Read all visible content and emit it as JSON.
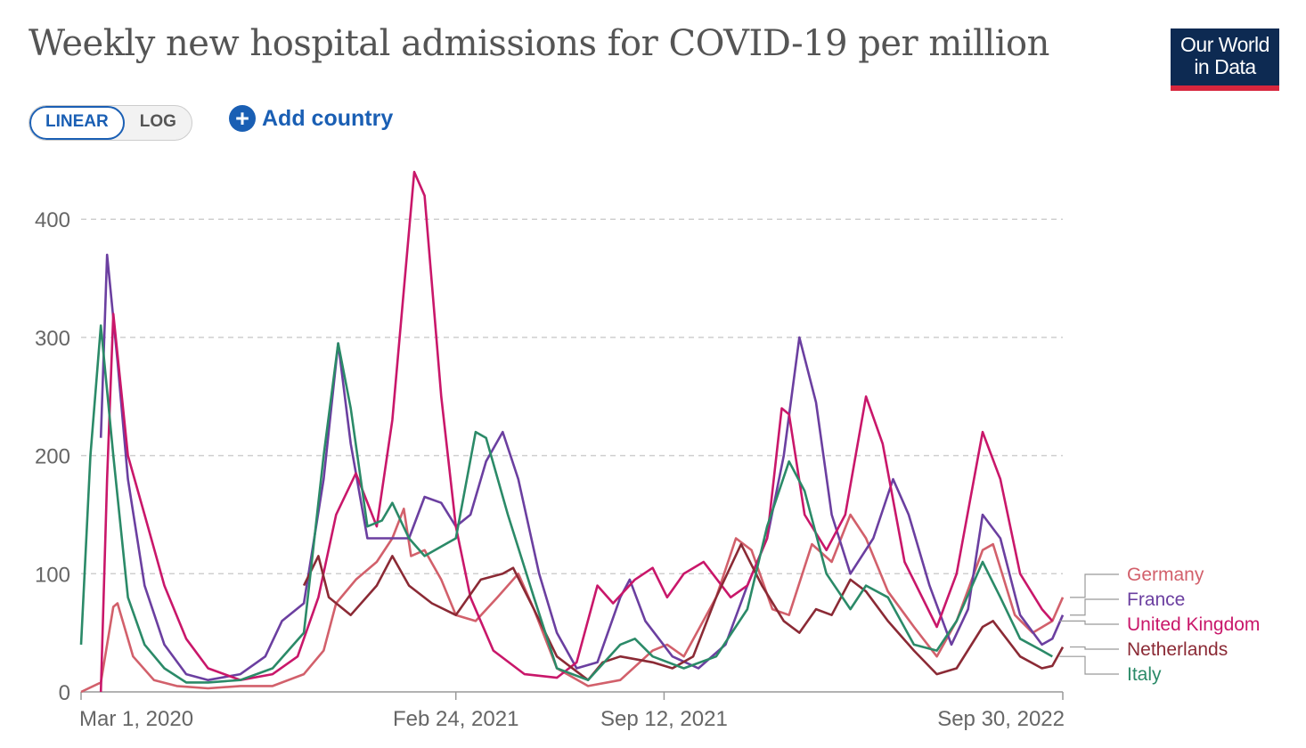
{
  "title": "Weekly new hospital admissions for COVID-19 per million",
  "logo": {
    "line1": "Our World",
    "line2": "in Data"
  },
  "scale_toggle": {
    "linear_label": "LINEAR",
    "log_label": "LOG",
    "selected": "LINEAR"
  },
  "add_country": {
    "label": "Add country",
    "icon": "plus-circle-icon"
  },
  "colors": {
    "Germany": "#d2606b",
    "France": "#6b3fa0",
    "United Kingdom": "#c9176a",
    "Netherlands": "#8b2a35",
    "Italy": "#2b8a68",
    "accent": "#1a5fb4"
  },
  "chart_data": {
    "type": "line",
    "title": "Weekly new hospital admissions for COVID-19 per million",
    "xlabel": "",
    "ylabel": "",
    "ylim": [
      0,
      440
    ],
    "yticks": [
      0,
      100,
      200,
      300,
      400
    ],
    "xticks": [
      "Mar 1, 2020",
      "Feb 24, 2021",
      "Sep 12, 2021",
      "Sep 30, 2022"
    ],
    "xlim": [
      "2020-03-01",
      "2022-09-30"
    ],
    "grid": "horizontal dashed",
    "legend": "right, line-end labels",
    "series": [
      {
        "name": "Germany",
        "points": [
          [
            "2020-03-01",
            0
          ],
          [
            "2020-03-20",
            8
          ],
          [
            "2020-04-01",
            72
          ],
          [
            "2020-04-05",
            75
          ],
          [
            "2020-04-20",
            30
          ],
          [
            "2020-05-10",
            10
          ],
          [
            "2020-06-01",
            5
          ],
          [
            "2020-07-01",
            3
          ],
          [
            "2020-08-01",
            5
          ],
          [
            "2020-09-01",
            5
          ],
          [
            "2020-10-01",
            15
          ],
          [
            "2020-10-20",
            35
          ],
          [
            "2020-11-01",
            75
          ],
          [
            "2020-11-20",
            95
          ],
          [
            "2020-12-10",
            110
          ],
          [
            "2020-12-25",
            130
          ],
          [
            "2021-01-05",
            155
          ],
          [
            "2021-01-12",
            115
          ],
          [
            "2021-01-25",
            120
          ],
          [
            "2021-02-10",
            95
          ],
          [
            "2021-02-24",
            65
          ],
          [
            "2021-03-15",
            60
          ],
          [
            "2021-04-05",
            80
          ],
          [
            "2021-04-25",
            100
          ],
          [
            "2021-05-10",
            70
          ],
          [
            "2021-06-01",
            20
          ],
          [
            "2021-07-01",
            5
          ],
          [
            "2021-08-01",
            10
          ],
          [
            "2021-09-01",
            35
          ],
          [
            "2021-09-15",
            40
          ],
          [
            "2021-10-01",
            30
          ],
          [
            "2021-11-01",
            80
          ],
          [
            "2021-11-20",
            130
          ],
          [
            "2021-12-05",
            120
          ],
          [
            "2021-12-25",
            70
          ],
          [
            "2022-01-10",
            65
          ],
          [
            "2022-02-01",
            125
          ],
          [
            "2022-02-20",
            110
          ],
          [
            "2022-03-10",
            150
          ],
          [
            "2022-03-25",
            130
          ],
          [
            "2022-04-15",
            85
          ],
          [
            "2022-05-10",
            55
          ],
          [
            "2022-06-01",
            30
          ],
          [
            "2022-06-20",
            60
          ],
          [
            "2022-07-15",
            120
          ],
          [
            "2022-07-25",
            125
          ],
          [
            "2022-08-15",
            65
          ],
          [
            "2022-09-01",
            50
          ],
          [
            "2022-09-20",
            60
          ],
          [
            "2022-09-30",
            80
          ]
        ]
      },
      {
        "name": "France",
        "points": [
          [
            "2020-03-20",
            215
          ],
          [
            "2020-03-26",
            370
          ],
          [
            "2020-04-05",
            280
          ],
          [
            "2020-04-15",
            180
          ],
          [
            "2020-05-01",
            90
          ],
          [
            "2020-05-20",
            40
          ],
          [
            "2020-06-10",
            15
          ],
          [
            "2020-07-01",
            10
          ],
          [
            "2020-08-01",
            15
          ],
          [
            "2020-08-25",
            30
          ],
          [
            "2020-09-10",
            60
          ],
          [
            "2020-10-01",
            75
          ],
          [
            "2020-10-20",
            180
          ],
          [
            "2020-11-03",
            295
          ],
          [
            "2020-11-15",
            210
          ],
          [
            "2020-12-01",
            130
          ],
          [
            "2020-12-20",
            130
          ],
          [
            "2021-01-10",
            130
          ],
          [
            "2021-01-25",
            165
          ],
          [
            "2021-02-10",
            160
          ],
          [
            "2021-02-24",
            140
          ],
          [
            "2021-03-10",
            150
          ],
          [
            "2021-03-25",
            195
          ],
          [
            "2021-04-10",
            220
          ],
          [
            "2021-04-25",
            180
          ],
          [
            "2021-05-15",
            100
          ],
          [
            "2021-06-01",
            50
          ],
          [
            "2021-06-20",
            20
          ],
          [
            "2021-07-10",
            25
          ],
          [
            "2021-08-01",
            80
          ],
          [
            "2021-08-10",
            95
          ],
          [
            "2021-08-25",
            60
          ],
          [
            "2021-09-20",
            30
          ],
          [
            "2021-10-15",
            20
          ],
          [
            "2021-11-10",
            40
          ],
          [
            "2021-12-01",
            90
          ],
          [
            "2021-12-20",
            130
          ],
          [
            "2022-01-05",
            200
          ],
          [
            "2022-01-20",
            300
          ],
          [
            "2022-02-05",
            245
          ],
          [
            "2022-02-20",
            150
          ],
          [
            "2022-03-10",
            100
          ],
          [
            "2022-04-01",
            130
          ],
          [
            "2022-04-20",
            180
          ],
          [
            "2022-05-05",
            150
          ],
          [
            "2022-05-25",
            90
          ],
          [
            "2022-06-15",
            40
          ],
          [
            "2022-07-01",
            70
          ],
          [
            "2022-07-15",
            150
          ],
          [
            "2022-08-01",
            130
          ],
          [
            "2022-08-20",
            65
          ],
          [
            "2022-09-10",
            40
          ],
          [
            "2022-09-20",
            45
          ],
          [
            "2022-09-30",
            65
          ]
        ]
      },
      {
        "name": "United Kingdom",
        "points": [
          [
            "2020-03-20",
            0
          ],
          [
            "2020-03-26",
            180
          ],
          [
            "2020-04-01",
            320
          ],
          [
            "2020-04-15",
            200
          ],
          [
            "2020-05-01",
            150
          ],
          [
            "2020-05-20",
            90
          ],
          [
            "2020-06-10",
            45
          ],
          [
            "2020-07-01",
            20
          ],
          [
            "2020-08-01",
            10
          ],
          [
            "2020-09-01",
            15
          ],
          [
            "2020-09-25",
            30
          ],
          [
            "2020-10-15",
            80
          ],
          [
            "2020-11-01",
            150
          ],
          [
            "2020-11-20",
            185
          ],
          [
            "2020-12-10",
            140
          ],
          [
            "2020-12-25",
            230
          ],
          [
            "2021-01-05",
            340
          ],
          [
            "2021-01-15",
            440
          ],
          [
            "2021-01-25",
            420
          ],
          [
            "2021-02-10",
            250
          ],
          [
            "2021-02-24",
            140
          ],
          [
            "2021-03-10",
            80
          ],
          [
            "2021-04-01",
            35
          ],
          [
            "2021-05-01",
            15
          ],
          [
            "2021-06-01",
            12
          ],
          [
            "2021-06-20",
            25
          ],
          [
            "2021-07-10",
            90
          ],
          [
            "2021-07-25",
            75
          ],
          [
            "2021-08-15",
            95
          ],
          [
            "2021-09-01",
            105
          ],
          [
            "2021-09-15",
            80
          ],
          [
            "2021-10-01",
            100
          ],
          [
            "2021-10-20",
            110
          ],
          [
            "2021-11-15",
            80
          ],
          [
            "2021-12-01",
            90
          ],
          [
            "2021-12-20",
            130
          ],
          [
            "2022-01-03",
            240
          ],
          [
            "2022-01-10",
            235
          ],
          [
            "2022-01-25",
            150
          ],
          [
            "2022-02-15",
            120
          ],
          [
            "2022-03-05",
            150
          ],
          [
            "2022-03-25",
            250
          ],
          [
            "2022-04-10",
            210
          ],
          [
            "2022-05-01",
            110
          ],
          [
            "2022-06-01",
            55
          ],
          [
            "2022-06-20",
            100
          ],
          [
            "2022-07-15",
            220
          ],
          [
            "2022-08-01",
            180
          ],
          [
            "2022-08-20",
            100
          ],
          [
            "2022-09-10",
            70
          ],
          [
            "2022-09-20",
            60
          ]
        ]
      },
      {
        "name": "Netherlands",
        "points": [
          [
            "2020-10-01",
            90
          ],
          [
            "2020-10-15",
            115
          ],
          [
            "2020-10-25",
            80
          ],
          [
            "2020-11-15",
            65
          ],
          [
            "2020-12-10",
            90
          ],
          [
            "2020-12-25",
            115
          ],
          [
            "2021-01-10",
            90
          ],
          [
            "2021-02-01",
            75
          ],
          [
            "2021-02-24",
            65
          ],
          [
            "2021-03-20",
            95
          ],
          [
            "2021-04-10",
            100
          ],
          [
            "2021-04-20",
            105
          ],
          [
            "2021-05-10",
            70
          ],
          [
            "2021-06-01",
            30
          ],
          [
            "2021-07-01",
            10
          ],
          [
            "2021-07-15",
            25
          ],
          [
            "2021-08-01",
            30
          ],
          [
            "2021-09-01",
            25
          ],
          [
            "2021-09-20",
            20
          ],
          [
            "2021-10-10",
            30
          ],
          [
            "2021-11-01",
            80
          ],
          [
            "2021-11-25",
            125
          ],
          [
            "2021-12-15",
            90
          ],
          [
            "2022-01-05",
            60
          ],
          [
            "2022-01-20",
            50
          ],
          [
            "2022-02-05",
            70
          ],
          [
            "2022-02-20",
            65
          ],
          [
            "2022-03-10",
            95
          ],
          [
            "2022-03-25",
            85
          ],
          [
            "2022-04-15",
            60
          ],
          [
            "2022-05-10",
            35
          ],
          [
            "2022-06-01",
            15
          ],
          [
            "2022-06-20",
            20
          ],
          [
            "2022-07-15",
            55
          ],
          [
            "2022-07-25",
            60
          ],
          [
            "2022-08-20",
            30
          ],
          [
            "2022-09-10",
            20
          ],
          [
            "2022-09-20",
            22
          ],
          [
            "2022-09-30",
            38
          ]
        ]
      },
      {
        "name": "Italy",
        "points": [
          [
            "2020-03-01",
            40
          ],
          [
            "2020-03-10",
            200
          ],
          [
            "2020-03-20",
            310
          ],
          [
            "2020-04-01",
            200
          ],
          [
            "2020-04-15",
            80
          ],
          [
            "2020-05-01",
            40
          ],
          [
            "2020-05-20",
            20
          ],
          [
            "2020-06-10",
            8
          ],
          [
            "2020-07-01",
            8
          ],
          [
            "2020-08-01",
            10
          ],
          [
            "2020-09-01",
            20
          ],
          [
            "2020-10-01",
            50
          ],
          [
            "2020-10-20",
            200
          ],
          [
            "2020-11-03",
            295
          ],
          [
            "2020-11-15",
            240
          ],
          [
            "2020-12-01",
            140
          ],
          [
            "2020-12-15",
            145
          ],
          [
            "2020-12-25",
            160
          ],
          [
            "2021-01-10",
            130
          ],
          [
            "2021-01-25",
            115
          ],
          [
            "2021-02-24",
            130
          ],
          [
            "2021-03-15",
            220
          ],
          [
            "2021-03-25",
            215
          ],
          [
            "2021-04-15",
            150
          ],
          [
            "2021-05-10",
            80
          ],
          [
            "2021-06-01",
            20
          ],
          [
            "2021-07-01",
            10
          ],
          [
            "2021-08-01",
            40
          ],
          [
            "2021-08-15",
            45
          ],
          [
            "2021-09-01",
            30
          ],
          [
            "2021-10-01",
            20
          ],
          [
            "2021-11-01",
            30
          ],
          [
            "2021-12-01",
            70
          ],
          [
            "2021-12-20",
            140
          ],
          [
            "2022-01-10",
            195
          ],
          [
            "2022-01-25",
            170
          ],
          [
            "2022-02-15",
            100
          ],
          [
            "2022-03-10",
            70
          ],
          [
            "2022-03-25",
            90
          ],
          [
            "2022-04-15",
            80
          ],
          [
            "2022-05-10",
            40
          ],
          [
            "2022-06-01",
            35
          ],
          [
            "2022-06-20",
            60
          ],
          [
            "2022-07-15",
            110
          ],
          [
            "2022-08-01",
            80
          ],
          [
            "2022-08-20",
            45
          ],
          [
            "2022-09-10",
            35
          ],
          [
            "2022-09-20",
            30
          ]
        ]
      }
    ]
  },
  "legend_order": [
    "Germany",
    "France",
    "United Kingdom",
    "Netherlands",
    "Italy"
  ]
}
